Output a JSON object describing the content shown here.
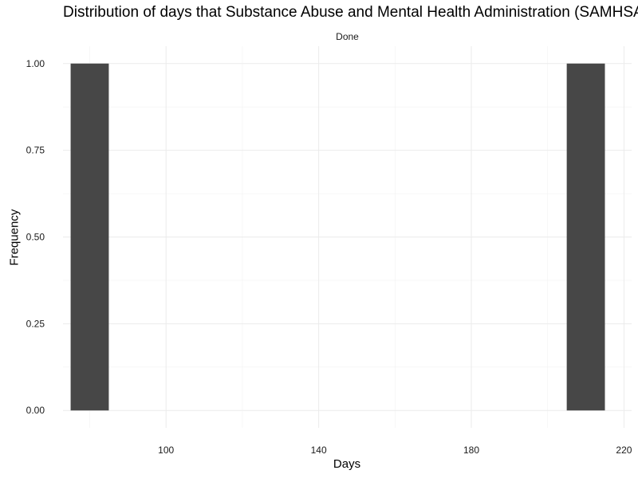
{
  "chart_data": {
    "type": "bar",
    "title": "Distribution of days that Substance Abuse and Mental Health Administration (SAMHSA",
    "facet": "Done",
    "xlabel": "Days",
    "ylabel": "Frequency",
    "bins": [
      {
        "x0": 75,
        "x1": 85,
        "count": 1
      },
      {
        "x0": 205,
        "x1": 215,
        "count": 1
      }
    ],
    "xlim": [
      73,
      222
    ],
    "ylim": [
      -0.05,
      1.05
    ],
    "x_ticks": [
      100,
      140,
      180,
      220
    ],
    "y_ticks": [
      0.0,
      0.25,
      0.5,
      0.75,
      1.0
    ],
    "y_tick_labels": [
      "0.00",
      "0.25",
      "0.50",
      "0.75",
      "1.00"
    ],
    "bar_color": "#474747",
    "grid": true
  }
}
